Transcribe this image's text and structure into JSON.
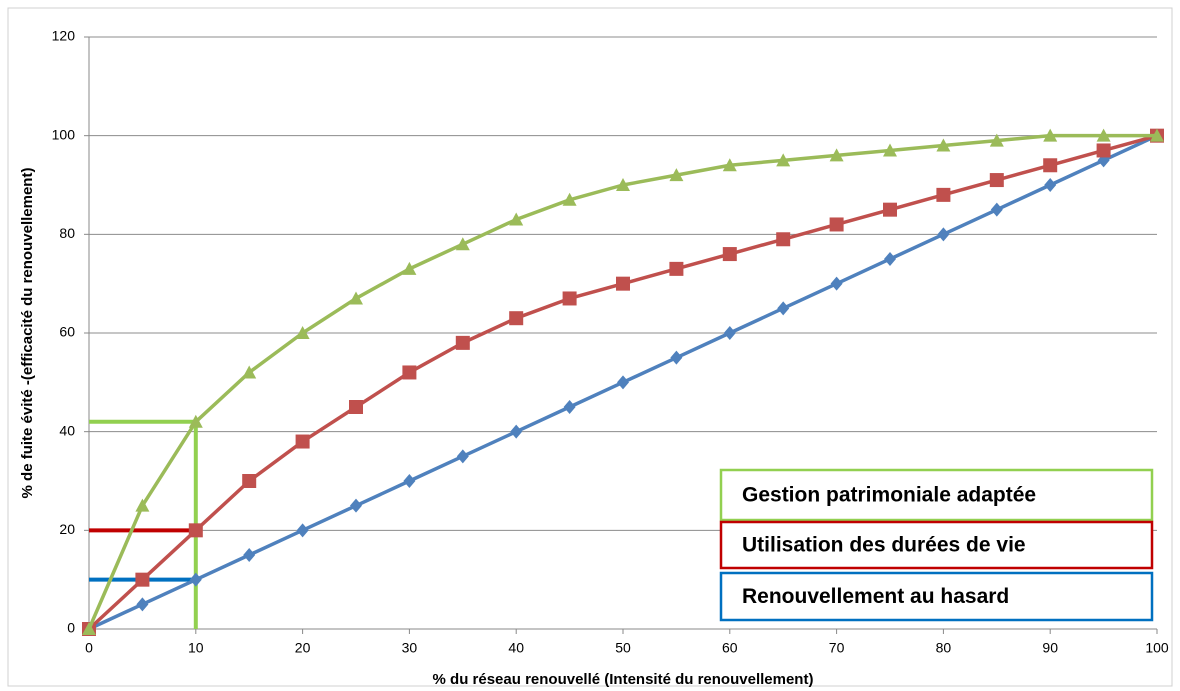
{
  "chart_data": {
    "type": "line",
    "xlabel": "% du réseau renouvellé (Intensité du renouvellement)",
    "ylabel": "% de fuite évité -(efficacité du renouvellement)",
    "x": [
      0,
      5,
      10,
      15,
      20,
      25,
      30,
      35,
      40,
      45,
      50,
      55,
      60,
      65,
      70,
      75,
      80,
      85,
      90,
      95,
      100
    ],
    "series": [
      {
        "name": "Gestion patrimoniale adaptée",
        "color": "#9bbb59",
        "legend_color": "#92d050",
        "marker": "triangle",
        "values": [
          0,
          25,
          42,
          52,
          60,
          67,
          73,
          78,
          83,
          87,
          90,
          92,
          94,
          95,
          96,
          97,
          98,
          99,
          100,
          100,
          100
        ]
      },
      {
        "name": "Utilisation des durées de vie",
        "color": "#c0504d",
        "legend_color": "#c00000",
        "marker": "square",
        "values": [
          0,
          10,
          20,
          30,
          38,
          45,
          52,
          58,
          63,
          67,
          70,
          73,
          76,
          79,
          82,
          85,
          88,
          91,
          94,
          97,
          100
        ]
      },
      {
        "name": "Renouvellement au hasard",
        "color": "#4f81bd",
        "legend_color": "#0070c0",
        "marker": "diamond",
        "values": [
          0,
          5,
          10,
          15,
          20,
          25,
          30,
          35,
          40,
          45,
          50,
          55,
          60,
          65,
          70,
          75,
          80,
          85,
          90,
          95,
          100
        ]
      }
    ],
    "guides": [
      {
        "x": 10,
        "y": 42,
        "color": "#92d050",
        "vertical": true
      },
      {
        "x": 10,
        "y": 20,
        "color": "#c00000",
        "vertical": false
      },
      {
        "x": 10,
        "y": 10,
        "color": "#0070c0",
        "vertical": false
      }
    ],
    "xlim": [
      0,
      100
    ],
    "xticks": [
      0,
      10,
      20,
      30,
      40,
      50,
      60,
      70,
      80,
      90,
      100
    ],
    "ylim": [
      0,
      120
    ],
    "yticks": [
      0,
      20,
      40,
      60,
      80,
      100,
      120
    ],
    "grid": true
  }
}
